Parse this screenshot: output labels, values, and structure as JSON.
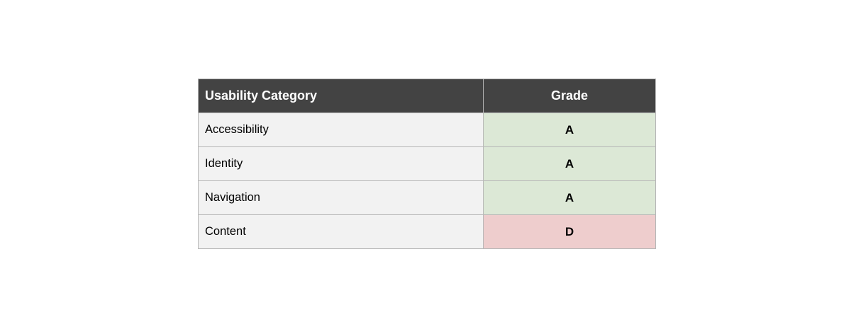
{
  "page": {
    "background": "#ffffff"
  },
  "table": {
    "headers": {
      "category": "Usability Category",
      "grade": "Grade"
    },
    "rows": [
      {
        "category": "Accessibility",
        "grade": "A",
        "grade_bg": "#dce8d6"
      },
      {
        "category": "Identity",
        "grade": "A",
        "grade_bg": "#dce8d6"
      },
      {
        "category": "Navigation",
        "grade": "A",
        "grade_bg": "#dce8d6"
      },
      {
        "category": "Content",
        "grade": "D",
        "grade_bg": "#eecdcd"
      }
    ],
    "colors": {
      "header_bg": "#434343",
      "header_text": "#ffffff",
      "category_cell_bg": "#f2f2f2",
      "grade_pass_bg": "#dce8d6",
      "grade_fail_bg": "#eecdcd",
      "border": "#b7b7b7",
      "body_text": "#000000"
    }
  },
  "chart_data": {
    "type": "table",
    "title": "",
    "columns": [
      "Usability Category",
      "Grade"
    ],
    "rows": [
      [
        "Accessibility",
        "A"
      ],
      [
        "Identity",
        "A"
      ],
      [
        "Navigation",
        "A"
      ],
      [
        "Content",
        "D"
      ]
    ],
    "cell_colors": {
      "A": "#dce8d6",
      "D": "#eecdcd"
    },
    "layout": {
      "header_bg": "#434343",
      "row_bg": "#f2f2f2",
      "grid": true
    }
  }
}
